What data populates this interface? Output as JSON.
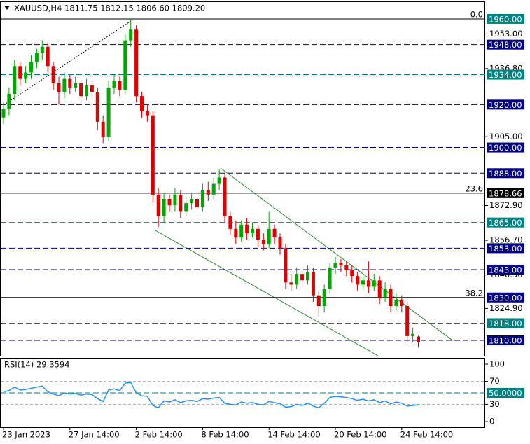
{
  "chart_data": {
    "type": "candlestick",
    "title": "XAUUSD,H4  1811.75 1812.15 1806.60 1809.20",
    "categories": [
      "23 Jan 2023",
      null,
      null,
      null,
      null,
      null,
      null,
      null,
      null,
      null,
      null,
      null,
      "27 Jan 14:00",
      null,
      null,
      null,
      null,
      null,
      null,
      null,
      null,
      null,
      null,
      null,
      "2 Feb 14:00",
      null,
      null,
      null,
      null,
      null,
      null,
      null,
      null,
      null,
      null,
      null,
      "8 Feb 14:00",
      null,
      null,
      null,
      null,
      null,
      null,
      null,
      null,
      null,
      null,
      null,
      "14 Feb 14:00",
      null,
      null,
      null,
      null,
      null,
      null,
      null,
      null,
      null,
      null,
      null,
      "20 Feb 14:00",
      null,
      null,
      null,
      null,
      null,
      null,
      null,
      null,
      null,
      null,
      null,
      "24 Feb 14:00",
      null,
      null,
      null
    ],
    "open": [
      1914,
      1918,
      1925,
      1938,
      1932,
      1935,
      1940,
      1944,
      1947,
      1938,
      1930,
      1926,
      1932,
      1928,
      1930,
      1924,
      1929,
      1926,
      1912,
      1905,
      1928,
      1931,
      1927,
      1950,
      1955,
      1924,
      1917,
      1915,
      1878,
      1868,
      1876,
      1873,
      1878,
      1870,
      1874,
      1876,
      1872,
      1880,
      1878,
      1883,
      1886,
      1868,
      1862,
      1858,
      1864,
      1860,
      1862,
      1857,
      1855,
      1862,
      1858,
      1853,
      1837,
      1836,
      1841,
      1838,
      1842,
      1831,
      1826,
      1834,
      1844,
      1846,
      1845,
      1843,
      1840,
      1836,
      1838,
      1835,
      1838,
      1830,
      1834,
      1826,
      1829,
      1826,
      1812,
      1811.75
    ],
    "high": [
      1921,
      1928,
      1941,
      1940,
      1938,
      1943,
      1946,
      1950,
      1949,
      1940,
      1933,
      1935,
      1934,
      1933,
      1932,
      1932,
      1931,
      1928,
      1915,
      1931,
      1934,
      1933,
      1953,
      1960,
      1957,
      1926,
      1920,
      1917,
      1881,
      1879,
      1878,
      1881,
      1880,
      1877,
      1879,
      1878,
      1883,
      1884,
      1886,
      1890,
      1888,
      1870,
      1866,
      1866,
      1867,
      1865,
      1864,
      1860,
      1870,
      1864,
      1860,
      1855,
      1841,
      1844,
      1843,
      1845,
      1844,
      1833,
      1836,
      1846,
      1849,
      1848,
      1847,
      1845,
      1842,
      1840,
      1847,
      1841,
      1840,
      1837,
      1836,
      1832,
      1831,
      1828,
      1816,
      1812.15
    ],
    "low": [
      1911,
      1915,
      1922,
      1929,
      1930,
      1932,
      1937,
      1941,
      1935,
      1927,
      1920,
      1923,
      1925,
      1926,
      1921,
      1922,
      1923,
      1908,
      1902,
      1903,
      1925,
      1924,
      1925,
      1947,
      1921,
      1914,
      1912,
      1874,
      1863,
      1865,
      1870,
      1870,
      1867,
      1868,
      1871,
      1869,
      1870,
      1875,
      1876,
      1880,
      1865,
      1859,
      1855,
      1856,
      1857,
      1858,
      1854,
      1852,
      1853,
      1855,
      1850,
      1834,
      1833,
      1834,
      1835,
      1836,
      1828,
      1821,
      1823,
      1832,
      1841,
      1842,
      1840,
      1837,
      1833,
      1834,
      1832,
      1833,
      1827,
      1828,
      1823,
      1824,
      1823,
      1809,
      1809,
      1806.6
    ],
    "close": [
      1918,
      1925,
      1938,
      1932,
      1935,
      1940,
      1944,
      1947,
      1938,
      1930,
      1926,
      1932,
      1928,
      1930,
      1924,
      1929,
      1926,
      1912,
      1905,
      1928,
      1931,
      1927,
      1950,
      1955,
      1924,
      1917,
      1915,
      1878,
      1868,
      1876,
      1873,
      1878,
      1870,
      1874,
      1876,
      1872,
      1880,
      1878,
      1883,
      1886,
      1868,
      1862,
      1858,
      1864,
      1860,
      1862,
      1857,
      1855,
      1862,
      1858,
      1853,
      1837,
      1836,
      1841,
      1838,
      1842,
      1831,
      1826,
      1834,
      1844,
      1846,
      1845,
      1843,
      1840,
      1836,
      1838,
      1835,
      1838,
      1830,
      1834,
      1826,
      1829,
      1826,
      1812,
      1813,
      1809.2
    ],
    "up_color": "#00a800",
    "down_color": "#e00000",
    "ylim": [
      1802.8,
      1967.5
    ],
    "yticks": [
      {
        "value": 1953,
        "label": "1953.00"
      },
      {
        "value": 1936.8,
        "label": "1936.80"
      },
      {
        "value": 1905,
        "label": "1905.00"
      },
      {
        "value": 1872.9,
        "label": "1872.90"
      },
      {
        "value": 1856.7,
        "label": "1856.70"
      },
      {
        "value": 1840.5,
        "label": "1840.50"
      },
      {
        "value": 1824.9,
        "label": "1824.90"
      }
    ],
    "levels": [
      {
        "value": 1960,
        "label": "1960.00",
        "color": "#008080",
        "line_color": "#000000",
        "line": "solid",
        "fib": "0.0"
      },
      {
        "value": 1948,
        "label": "1948.00",
        "color": "#000080",
        "line_color": "#000080",
        "line": "dash"
      },
      {
        "value": 1934,
        "label": "1934.00",
        "color": "#008080",
        "line_color": "#008080",
        "line": "dash"
      },
      {
        "value": 1920,
        "label": "1920.00",
        "color": "#000080",
        "line_color": "#000080",
        "line": "dash"
      },
      {
        "value": 1900,
        "label": "1900.00",
        "color": "#000080",
        "line_color": "#000080",
        "line": "dash"
      },
      {
        "value": 1888,
        "label": "1888.00",
        "color": "#000080",
        "line_color": "#000080",
        "line": "dash"
      },
      {
        "value": 1878.66,
        "label": "1878.66",
        "color": "#000000",
        "line_color": "#000000",
        "line": "solid",
        "fib": "23.6"
      },
      {
        "value": 1865,
        "label": "1865.00",
        "color": "#008080",
        "line_color": "#008080",
        "line": "dash"
      },
      {
        "value": 1853,
        "label": "1853.00",
        "color": "#000080",
        "line_color": "#000080",
        "line": "dash"
      },
      {
        "value": 1843,
        "label": "1843.00",
        "color": "#000080",
        "line_color": "#000080",
        "line": "dash"
      },
      {
        "value": 1830,
        "label": "1830.00",
        "color": "#000080",
        "line_color": "#000000",
        "line": "solid",
        "fib": "38.2"
      },
      {
        "value": 1818,
        "label": "1818.00",
        "color": "#008080",
        "line_color": "#008080",
        "line": "dash"
      },
      {
        "value": 1810,
        "label": "1810.00",
        "color": "#000080",
        "line_color": "#000080",
        "line": "dash"
      }
    ],
    "rsi": {
      "name": "RSI(14) 29.3594",
      "color": "#1e90ff",
      "values": [
        52,
        54,
        60,
        55,
        56,
        58,
        60,
        62,
        52,
        48,
        45,
        50,
        48,
        49,
        46,
        48,
        47,
        40,
        35,
        55,
        57,
        54,
        67,
        68,
        50,
        45,
        44,
        28,
        24,
        36,
        34,
        38,
        33,
        36,
        37,
        35,
        40,
        39,
        41,
        42,
        32,
        30,
        29,
        34,
        32,
        33,
        30,
        29,
        35,
        33,
        31,
        25,
        26,
        30,
        28,
        32,
        27,
        24,
        32,
        42,
        44,
        43,
        42,
        40,
        37,
        39,
        36,
        38,
        33,
        36,
        31,
        34,
        32,
        27,
        28,
        29.3594
      ],
      "ylim": [
        0,
        100
      ],
      "yticks": [
        100,
        70,
        30,
        0
      ],
      "dashed_levels": [
        70,
        30
      ],
      "level": {
        "value": 50,
        "label": "50.0000",
        "color": "#008080"
      }
    }
  }
}
